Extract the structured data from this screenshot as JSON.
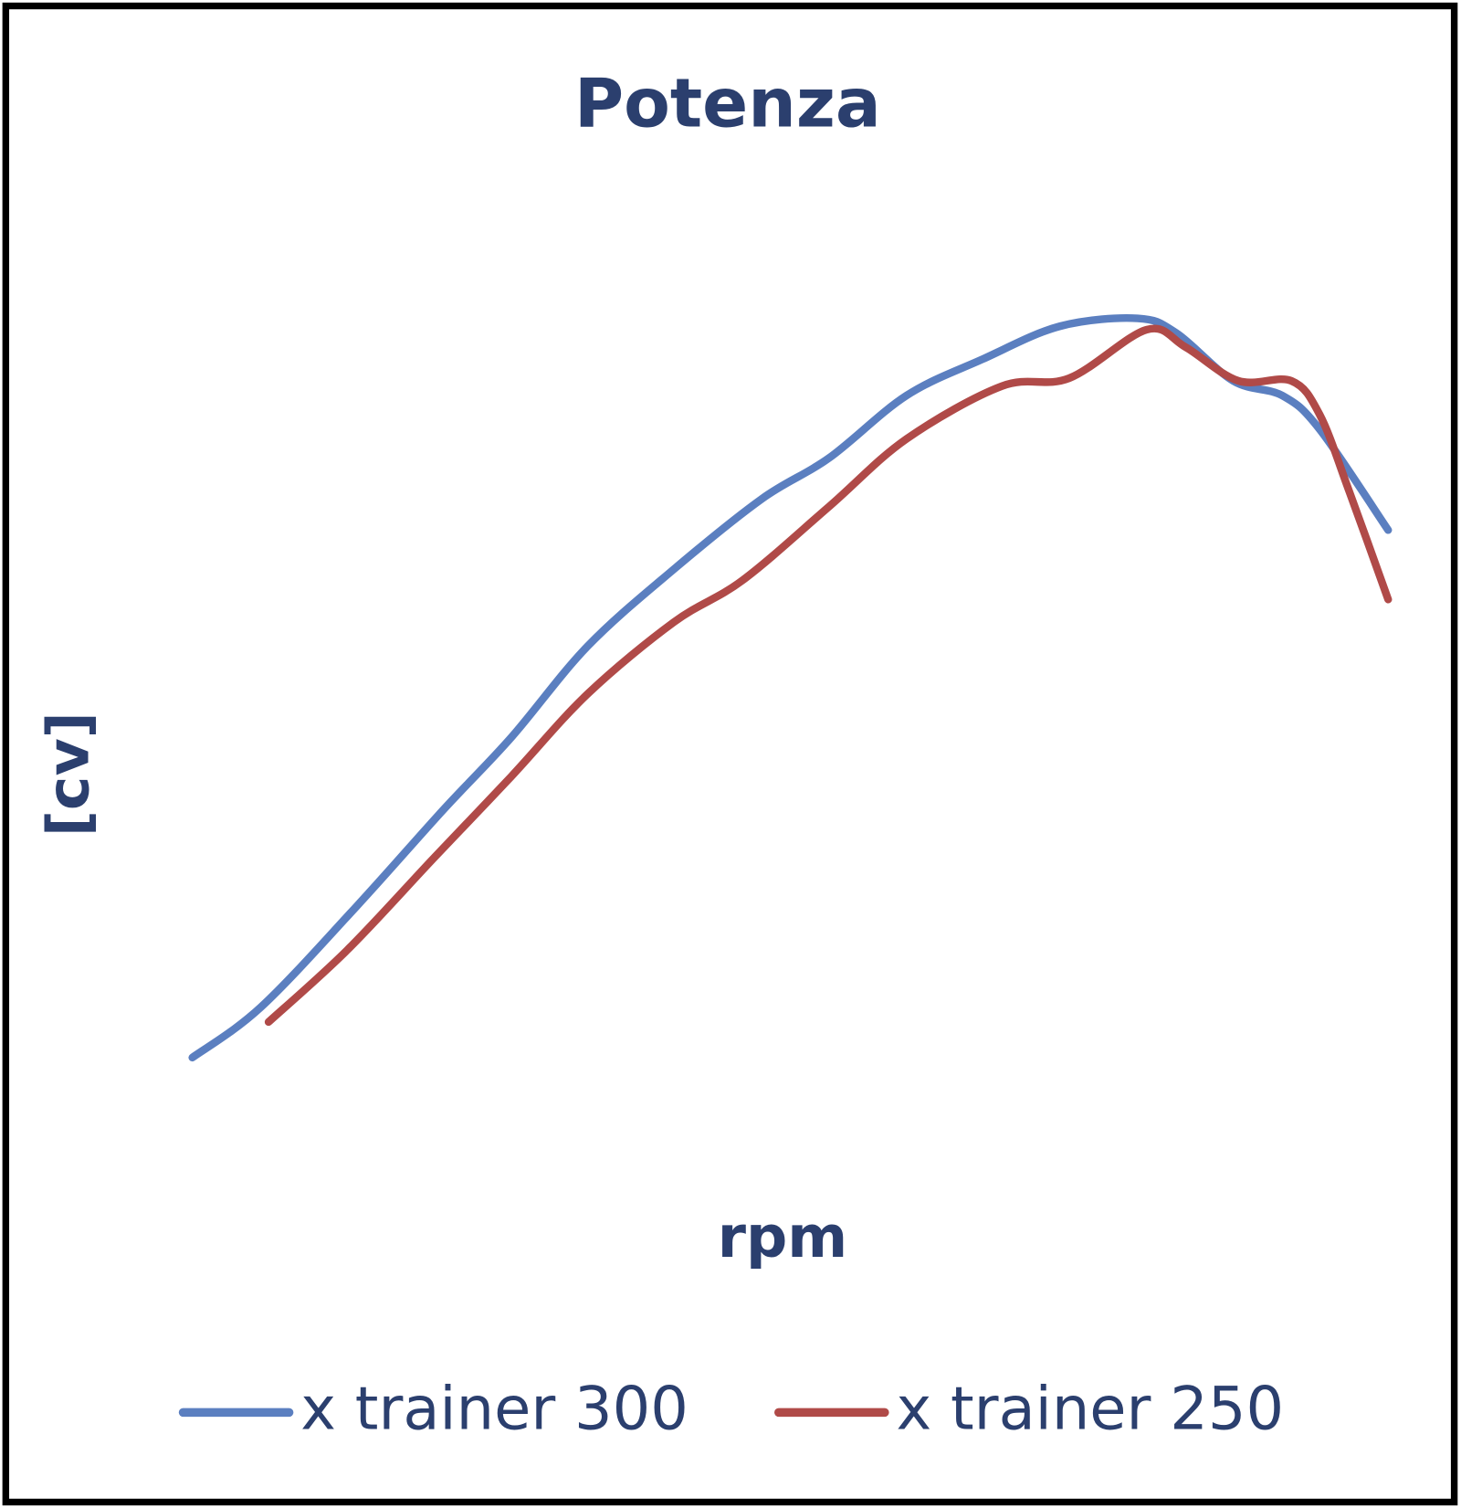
{
  "chart_data": {
    "type": "line",
    "title": "Potenza",
    "x_label": "rpm",
    "y_label": "[cv]",
    "xlim": [
      0,
      100
    ],
    "ylim": [
      0,
      100
    ],
    "grid": false,
    "legend": "bottom",
    "series": [
      {
        "name": "x trainer 300",
        "color": "#5b7fc0",
        "x": [
          3.7,
          9.0,
          16.4,
          23.1,
          28.4,
          34.3,
          41.0,
          47.8,
          53.0,
          59.0,
          64.9,
          70.9,
          76.9,
          79.9,
          84.3,
          88.1,
          91.0,
          96.3
        ],
        "values": [
          5.9,
          11.7,
          23.3,
          34.4,
          42.8,
          53.3,
          62.2,
          70.3,
          75.0,
          82.2,
          86.4,
          90.2,
          91.1,
          89.4,
          83.9,
          82.2,
          78.3,
          66.7
        ]
      },
      {
        "name": "x trainer 250",
        "color": "#b04a48",
        "x": [
          9.6,
          15.7,
          22.4,
          28.4,
          34.3,
          41.0,
          46.3,
          53.0,
          59.0,
          66.4,
          71.6,
          77.6,
          80.6,
          84.7,
          88.8,
          91.0,
          93.3,
          96.3
        ],
        "values": [
          10.0,
          18.3,
          28.9,
          38.3,
          47.8,
          56.1,
          60.9,
          69.4,
          77.2,
          83.3,
          84.2,
          89.8,
          87.8,
          83.9,
          83.9,
          80.0,
          71.1,
          58.7
        ]
      }
    ]
  }
}
